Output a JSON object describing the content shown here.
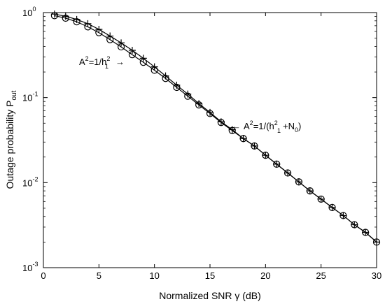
{
  "chart_data": {
    "type": "line",
    "xlabel": "Normalized SNR γ (dB)",
    "ylabel": {
      "text": "Outage probability P",
      "sub": "out"
    },
    "xlim": [
      0,
      30
    ],
    "ylim": [
      0.001,
      1
    ],
    "yscale": "log",
    "grid": false,
    "x_ticks": [
      "0",
      "5",
      "10",
      "15",
      "20",
      "25",
      "30"
    ],
    "y_ticks": [
      {
        "base": "10",
        "exp": "0"
      },
      {
        "base": "10",
        "exp": "-1"
      },
      {
        "base": "10",
        "exp": "-2"
      },
      {
        "base": "10",
        "exp": "-3"
      }
    ],
    "series": [
      {
        "marker": "plus",
        "color": "#000000",
        "x": [
          1,
          2,
          3,
          4,
          5,
          6,
          7,
          8,
          9,
          10,
          11,
          12,
          13,
          14,
          15,
          16,
          17,
          18,
          19,
          20,
          21,
          22,
          23,
          24,
          25,
          26,
          27,
          28,
          29,
          30
        ],
        "y": [
          0.96,
          0.905,
          0.83,
          0.74,
          0.635,
          0.53,
          0.44,
          0.36,
          0.29,
          0.23,
          0.18,
          0.14,
          0.11,
          0.085,
          0.067,
          0.052,
          0.042,
          0.033,
          0.027,
          0.021,
          0.0165,
          0.013,
          0.0102,
          0.008,
          0.0064,
          0.0051,
          0.0041,
          0.0032,
          0.0026,
          0.002
        ]
      },
      {
        "marker": "circle",
        "color": "#000000",
        "x": [
          1,
          2,
          3,
          4,
          5,
          6,
          7,
          8,
          9,
          10,
          11,
          12,
          13,
          14,
          15,
          16,
          17,
          18,
          19,
          20,
          21,
          22,
          23,
          24,
          25,
          26,
          27,
          28,
          29,
          30
        ],
        "y": [
          0.92,
          0.86,
          0.78,
          0.68,
          0.58,
          0.48,
          0.395,
          0.32,
          0.26,
          0.21,
          0.168,
          0.132,
          0.104,
          0.082,
          0.065,
          0.051,
          0.041,
          0.033,
          0.027,
          0.021,
          0.0165,
          0.013,
          0.0102,
          0.008,
          0.0064,
          0.0051,
          0.0041,
          0.0032,
          0.0026,
          0.002
        ]
      }
    ],
    "annotations": [
      {
        "kind": "label1",
        "x": 8,
        "y": 0.38,
        "parts": {
          "a": "A",
          "asup": "2",
          "mid": "=1/h",
          "hsup": "2",
          "hsub": "1",
          "arrow": "→"
        }
      },
      {
        "kind": "label2",
        "x": 17.5,
        "y": 0.05,
        "parts": {
          "arrow": "←",
          "a": "A",
          "asup": "2",
          "mid": "=1/(h",
          "hsup": "2",
          "hsub": "1",
          "plus": "+N",
          "nsub": "0",
          "close": ")"
        }
      }
    ]
  }
}
